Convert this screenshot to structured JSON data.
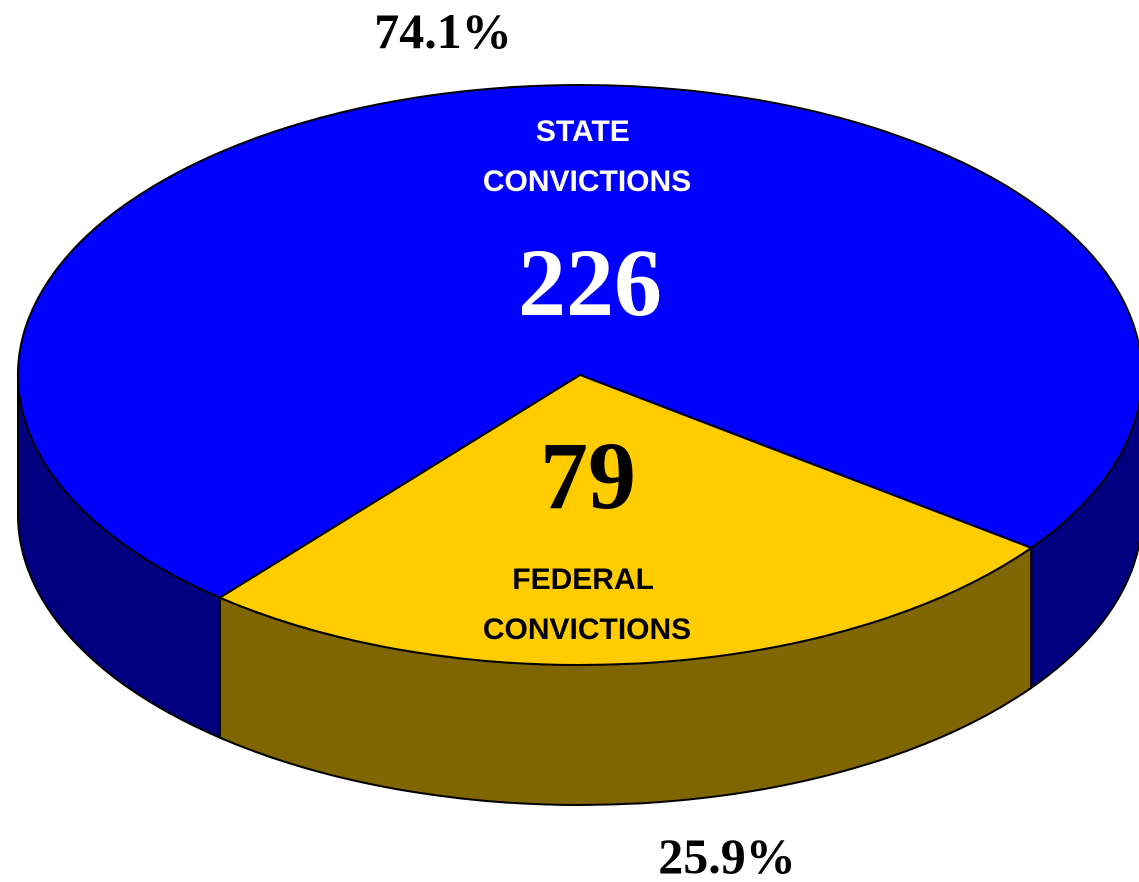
{
  "chart_data": {
    "type": "pie3d",
    "categories": [
      "STATE CONVICTIONS",
      "FEDERAL CONVICTIONS"
    ],
    "values": [
      226,
      79
    ],
    "percent_labels": [
      "74.1%",
      "25.9%"
    ],
    "colors": [
      "#0000ff",
      "#ffcc00"
    ],
    "side_colors": [
      "#000080",
      "#806600"
    ]
  }
}
